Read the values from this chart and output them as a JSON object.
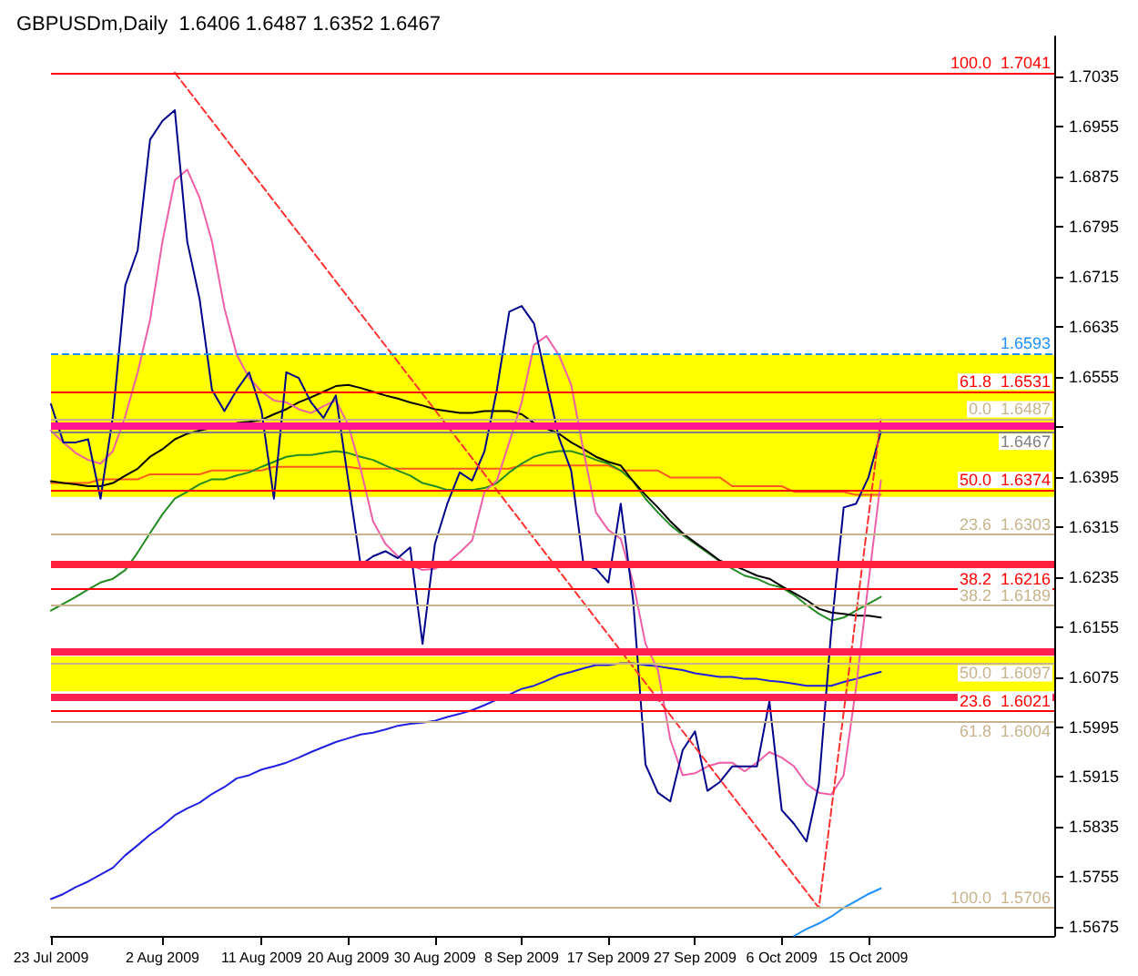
{
  "chart_data": {
    "type": "line",
    "title": "GBPUSDm,Daily  1.6406 1.6487 1.6352 1.6467",
    "marker": "none",
    "grid": false,
    "categories": [
      "23 Jul 2009",
      null,
      null,
      null,
      null,
      null,
      null,
      null,
      null,
      "2 Aug 2009",
      null,
      null,
      null,
      null,
      null,
      null,
      null,
      "11 Aug 2009",
      null,
      null,
      null,
      null,
      null,
      null,
      "20 Aug 2009",
      null,
      null,
      null,
      null,
      null,
      null,
      "30 Aug 2009",
      null,
      null,
      null,
      null,
      null,
      null,
      "8 Sep 2009",
      null,
      null,
      null,
      null,
      null,
      null,
      "17 Sep 2009",
      null,
      null,
      null,
      null,
      null,
      null,
      "27 Sep 2009",
      null,
      null,
      null,
      null,
      null,
      null,
      "6 Oct 2009",
      null,
      null,
      null,
      null,
      null,
      null,
      "15 Oct 2009",
      null,
      null,
      null,
      null,
      null,
      null,
      null,
      null,
      null,
      null,
      null,
      null,
      null,
      null,
      null
    ],
    "ylim": [
      1.5661,
      1.7099
    ],
    "yticks": [
      1.5675,
      1.5755,
      1.5835,
      1.5915,
      1.5995,
      1.6075,
      1.6155,
      1.6235,
      1.6315,
      1.6395,
      {
        "value": 1.6475,
        "label": null
      },
      1.6555,
      1.6635,
      1.6715,
      1.6795,
      1.6875,
      1.6955,
      1.7035
    ],
    "bands": [
      {
        "axis": "y",
        "from": 1.6363,
        "to": 1.659,
        "color": "#ffff00"
      },
      {
        "axis": "y",
        "from": 1.6052,
        "to": 1.6108,
        "color": "#ffff00"
      }
    ],
    "ref_lines": [
      {
        "axis": "y",
        "value": 1.7041,
        "label": "100.0  1.7041",
        "color": "#ff0000"
      },
      {
        "axis": "y",
        "value": 1.6593,
        "label": "1.6593",
        "color": "#1e90ff",
        "line_style": "dashed"
      },
      {
        "axis": "y",
        "value": 1.6531,
        "label": "61.8  1.6531",
        "color": "#ff0000"
      },
      {
        "axis": "y",
        "value": 1.6487,
        "label": "0.0  1.6487",
        "color": "#c8b48c"
      },
      {
        "axis": "y",
        "value": 1.6478,
        "color": "#ff1493"
      },
      {
        "axis": "y",
        "value": 1.6467,
        "label": "1.6467",
        "color": "#808080"
      },
      {
        "axis": "y",
        "value": 1.6374,
        "label": "50.0  1.6374",
        "color": "#ff0000"
      },
      {
        "axis": "y",
        "value": 1.6303,
        "label": "23.6  1.6303",
        "color": "#c8b48c"
      },
      {
        "axis": "y",
        "value": 1.6257,
        "color": "#ff2040"
      },
      {
        "axis": "y",
        "value": 1.6216,
        "label": "38.2  1.6216",
        "color": "#ff0000"
      },
      {
        "axis": "y",
        "value": 1.6189,
        "label": "38.2  1.6189",
        "color": "#c8b48c"
      },
      {
        "axis": "y",
        "value": 1.6117,
        "color": "#ff2050"
      },
      {
        "axis": "y",
        "value": 1.6097,
        "label": "50.0  1.6097",
        "color": "#c8b48c"
      },
      {
        "axis": "y",
        "value": 1.6044,
        "color": "#ff2050"
      },
      {
        "axis": "y",
        "value": 1.6021,
        "label": "23.6  1.6021",
        "color": "#ff0000"
      },
      {
        "axis": "y",
        "value": 1.6004,
        "label": "61.8  1.6004",
        "color": "#c8b48c"
      },
      {
        "axis": "y",
        "value": 1.5706,
        "label": "100.0  1.5706",
        "color": "#c8b48c"
      }
    ],
    "series": [
      {
        "color": "#2020e0",
        "values": [
          1.572,
          1.5728,
          1.5739,
          1.5748,
          1.5759,
          1.577,
          1.579,
          1.5806,
          1.5823,
          1.5837,
          1.5854,
          1.5865,
          1.5874,
          1.5888,
          1.5899,
          1.5913,
          1.5918,
          1.5927,
          1.5932,
          1.5938,
          1.5946,
          1.5955,
          1.5963,
          1.5971,
          1.5977,
          1.5983,
          1.5986,
          1.5991,
          1.5997,
          1.6,
          1.6002,
          1.6005,
          1.6011,
          1.6016,
          1.6022,
          1.603,
          1.6039,
          1.6047,
          1.6056,
          1.6061,
          1.6069,
          1.6078,
          1.6083,
          1.6089,
          1.6094,
          1.6094,
          1.6097,
          1.6097,
          1.6094,
          1.6092,
          1.6089,
          1.6086,
          1.6081,
          1.6078,
          1.6075,
          1.6075,
          1.6072,
          1.6072,
          1.6069,
          1.6067,
          1.6064,
          1.6061,
          1.6061,
          1.6061,
          1.6067,
          1.6072,
          1.6078,
          1.6083,
          null,
          null,
          null,
          null,
          null,
          null,
          null,
          null,
          null,
          null,
          null,
          null,
          null,
          null
        ]
      },
      {
        "color": "#1e90ff",
        "values": [
          null,
          null,
          null,
          null,
          null,
          null,
          null,
          null,
          null,
          null,
          null,
          null,
          null,
          null,
          null,
          null,
          null,
          null,
          null,
          null,
          null,
          null,
          null,
          null,
          null,
          null,
          null,
          null,
          null,
          null,
          null,
          null,
          null,
          null,
          null,
          null,
          null,
          null,
          null,
          null,
          null,
          null,
          null,
          null,
          null,
          null,
          null,
          null,
          null,
          null,
          null,
          null,
          null,
          null,
          null,
          null,
          null,
          null,
          null,
          null,
          1.5661,
          1.5672,
          1.5681,
          1.5692,
          1.5706,
          1.5717,
          1.5728,
          1.5737,
          null,
          null,
          null,
          null,
          null,
          null,
          null,
          null,
          null,
          null,
          null,
          null,
          null,
          null
        ]
      },
      {
        "color": "#ff5a1e",
        "values": [
          1.6385,
          1.6385,
          1.6385,
          1.6385,
          1.6391,
          1.6391,
          1.6391,
          1.6391,
          1.6399,
          1.6399,
          1.6399,
          1.6399,
          1.6399,
          1.6405,
          1.6405,
          1.6405,
          1.6405,
          1.6405,
          1.6411,
          1.6411,
          1.6411,
          1.6411,
          1.6411,
          1.6411,
          1.6411,
          1.6408,
          1.6408,
          1.6408,
          1.6408,
          1.6408,
          1.6408,
          1.6408,
          1.6408,
          1.6408,
          1.6408,
          1.6408,
          1.6408,
          1.6408,
          1.6413,
          1.6413,
          1.6413,
          1.6413,
          1.6413,
          1.6413,
          1.6413,
          1.6413,
          1.6405,
          1.6405,
          1.6405,
          1.6405,
          1.6394,
          1.6394,
          1.6394,
          1.6394,
          1.6394,
          1.638,
          1.638,
          1.638,
          1.638,
          1.638,
          1.6371,
          1.6371,
          1.6371,
          1.6371,
          1.6371,
          1.6366,
          1.6366,
          1.6366,
          null,
          null,
          null,
          null,
          null,
          null,
          null,
          null,
          null,
          null,
          null,
          null,
          null,
          null
        ]
      },
      {
        "color": "#228b22",
        "values": [
          1.6181,
          1.6192,
          1.6203,
          1.6215,
          1.6226,
          1.6232,
          1.6246,
          1.6274,
          1.6305,
          1.6335,
          1.636,
          1.6371,
          1.6383,
          1.6391,
          1.6391,
          1.6397,
          1.6402,
          1.6411,
          1.6419,
          1.6427,
          1.643,
          1.643,
          1.6433,
          1.6436,
          1.6433,
          1.6427,
          1.6422,
          1.6413,
          1.6405,
          1.6397,
          1.6385,
          1.638,
          1.6374,
          1.6374,
          1.6374,
          1.6377,
          1.6385,
          1.6402,
          1.6416,
          1.6427,
          1.6433,
          1.6436,
          1.6436,
          1.643,
          1.6422,
          1.6416,
          1.6405,
          1.6388,
          1.636,
          1.6338,
          1.6318,
          1.6302,
          1.6288,
          1.6274,
          1.626,
          1.6248,
          1.6237,
          1.6232,
          1.6223,
          1.6218,
          1.6206,
          1.619,
          1.6176,
          1.6165,
          1.617,
          1.6181,
          1.6192,
          1.6203,
          null,
          null,
          null,
          null,
          null,
          null,
          null,
          null,
          null,
          null,
          null,
          null,
          null,
          null
        ]
      },
      {
        "color": "#000000",
        "values": [
          1.6388,
          1.6385,
          1.6383,
          1.638,
          1.638,
          1.6385,
          1.6397,
          1.6408,
          1.6427,
          1.6439,
          1.6455,
          1.6464,
          1.6469,
          null,
          null,
          1.6481,
          1.6483,
          1.6486,
          1.6495,
          1.6503,
          1.6514,
          1.6522,
          1.6531,
          1.654,
          1.6542,
          1.6537,
          1.6531,
          1.6525,
          1.652,
          1.6514,
          1.6509,
          1.6503,
          1.65,
          1.6497,
          1.6497,
          1.65,
          1.65,
          1.65,
          1.6495,
          1.6481,
          1.6472,
          1.6464,
          1.645,
          1.6439,
          1.6427,
          1.6419,
          1.6413,
          1.6388,
          1.6366,
          1.6346,
          1.6324,
          1.6305,
          1.629,
          1.6276,
          1.6261,
          1.6254,
          1.6246,
          1.6237,
          1.6232,
          1.622,
          1.6209,
          1.6198,
          1.6184,
          1.6178,
          1.6176,
          1.6173,
          1.6173,
          1.617,
          null,
          null,
          null,
          null,
          null,
          null,
          null,
          null,
          null,
          null,
          null,
          null,
          null,
          null
        ]
      },
      {
        "color": "#ee5fa7",
        "values": [
          1.6469,
          1.645,
          1.6433,
          1.6422,
          1.6416,
          1.6436,
          1.6492,
          1.6562,
          1.6646,
          1.6771,
          1.6869,
          1.6886,
          1.6841,
          1.6771,
          1.6665,
          1.659,
          1.6553,
          1.6531,
          1.6517,
          1.6514,
          1.6503,
          1.6497,
          1.6508,
          1.6517,
          1.6478,
          1.6408,
          1.6324,
          1.6288,
          1.6268,
          1.6254,
          1.6246,
          1.6248,
          1.6257,
          1.6274,
          1.6293,
          1.6371,
          1.6389,
          1.645,
          1.6514,
          1.6606,
          1.662,
          1.659,
          1.6542,
          1.6436,
          1.6338,
          1.631,
          1.6296,
          1.6226,
          1.6128,
          1.6086,
          1.5975,
          1.5918,
          1.5921,
          1.5932,
          1.5938,
          1.5938,
          1.5924,
          1.5938,
          1.5955,
          1.5946,
          1.5932,
          1.5904,
          1.589,
          1.5887,
          1.5918,
          1.6058,
          1.6226,
          1.6389,
          null,
          null,
          null,
          null,
          null,
          null,
          null,
          null,
          null,
          null,
          null,
          null,
          null,
          null
        ]
      },
      {
        "color": "#00008b",
        "values": [
          1.6511,
          1.645,
          1.645,
          1.6455,
          1.636,
          1.6492,
          1.6701,
          1.6757,
          1.6934,
          1.6964,
          1.6981,
          1.6771,
          1.6679,
          1.6534,
          1.65,
          1.6534,
          1.6562,
          1.65,
          1.636,
          1.6562,
          1.6553,
          1.6514,
          1.6489,
          1.6525,
          1.6389,
          1.6254,
          1.6268,
          1.6276,
          1.6265,
          1.6282,
          1.6128,
          1.6288,
          1.6352,
          1.6402,
          1.6389,
          1.6436,
          1.6534,
          1.6659,
          1.6668,
          1.664,
          1.6548,
          1.6458,
          1.6405,
          1.6254,
          1.6248,
          1.6226,
          1.6352,
          1.6198,
          1.5935,
          1.589,
          1.5876,
          1.5958,
          1.5988,
          1.5893,
          1.5907,
          1.5932,
          1.5932,
          1.5932,
          1.6036,
          1.5862,
          1.584,
          1.5812,
          1.5904,
          1.615,
          1.6346,
          1.6352,
          1.6394,
          1.6467,
          null,
          null,
          null,
          null,
          null,
          null,
          null,
          null,
          null,
          null,
          null,
          null,
          null,
          null
        ]
      },
      {
        "color": "#ff3030",
        "line_style": "dashed",
        "values": [
          null,
          null,
          null,
          null,
          null,
          null,
          null,
          null,
          null,
          null,
          1.7041,
          null,
          null,
          null,
          null,
          null,
          null,
          null,
          null,
          null,
          null,
          null,
          null,
          null,
          null,
          null,
          null,
          null,
          null,
          null,
          null,
          null,
          null,
          null,
          null,
          null,
          null,
          null,
          null,
          null,
          null,
          null,
          null,
          null,
          null,
          null,
          null,
          null,
          null,
          null,
          null,
          null,
          null,
          null,
          null,
          null,
          null,
          null,
          null,
          null,
          null,
          null,
          1.5706,
          null,
          null,
          null,
          null,
          1.6487,
          null,
          null,
          null,
          null,
          null,
          null,
          null,
          null,
          null,
          null,
          null,
          null,
          null,
          null
        ]
      }
    ]
  }
}
